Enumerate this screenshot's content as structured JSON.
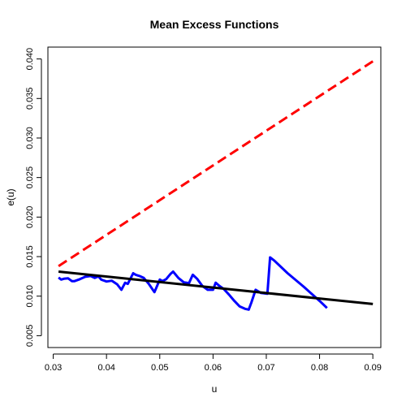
{
  "chart_data": {
    "type": "line",
    "title": "Mean Excess Functions",
    "xlabel": "u",
    "ylabel": "e(u)",
    "xlim": [
      0.029,
      0.0915
    ],
    "ylim": [
      0.0035,
      0.0415
    ],
    "x_ticks": [
      "0.03",
      "0.04",
      "0.05",
      "0.06",
      "0.07",
      "0.08",
      "0.09"
    ],
    "y_ticks": [
      "0.005",
      "0.010",
      "0.015",
      "0.020",
      "0.025",
      "0.030",
      "0.035",
      "0.040"
    ],
    "series": [
      {
        "color": "#0000ff",
        "style": "solid",
        "x": [
          0.031,
          0.0315,
          0.032,
          0.0328,
          0.0335,
          0.034,
          0.035,
          0.036,
          0.037,
          0.0378,
          0.0385,
          0.039,
          0.04,
          0.041,
          0.042,
          0.0428,
          0.0435,
          0.044,
          0.045,
          0.0455,
          0.0462,
          0.047,
          0.048,
          0.049,
          0.05,
          0.0505,
          0.0512,
          0.052,
          0.0525,
          0.0535,
          0.0545,
          0.0555,
          0.0562,
          0.057,
          0.058,
          0.059,
          0.06,
          0.0605,
          0.0612,
          0.062,
          0.063,
          0.064,
          0.065,
          0.066,
          0.0667,
          0.0672,
          0.068,
          0.069,
          0.0702,
          0.0707,
          0.0715,
          0.074,
          0.077,
          0.08,
          0.0814
        ],
        "y": [
          0.01235,
          0.0121,
          0.0122,
          0.01225,
          0.0119,
          0.0119,
          0.01215,
          0.01245,
          0.01255,
          0.0123,
          0.0125,
          0.0121,
          0.01185,
          0.01195,
          0.0115,
          0.0108,
          0.0117,
          0.01155,
          0.0129,
          0.0127,
          0.01255,
          0.0123,
          0.0115,
          0.0105,
          0.0121,
          0.0119,
          0.01215,
          0.0128,
          0.0131,
          0.0123,
          0.01175,
          0.01165,
          0.0127,
          0.0122,
          0.0113,
          0.0108,
          0.0108,
          0.0117,
          0.0113,
          0.0109,
          0.0102,
          0.0094,
          0.0087,
          0.0084,
          0.0083,
          0.0092,
          0.0108,
          0.0104,
          0.0103,
          0.0149,
          0.0145,
          0.0129,
          0.0112,
          0.0094,
          0.0085
        ]
      },
      {
        "color": "#000000",
        "style": "solid",
        "x": [
          0.031,
          0.09
        ],
        "y": [
          0.0131,
          0.009
        ]
      },
      {
        "color": "#ff0000",
        "style": "dashed",
        "x": [
          0.031,
          0.09
        ],
        "y": [
          0.0138,
          0.0397
        ]
      }
    ],
    "grid": false,
    "legend": "none"
  }
}
